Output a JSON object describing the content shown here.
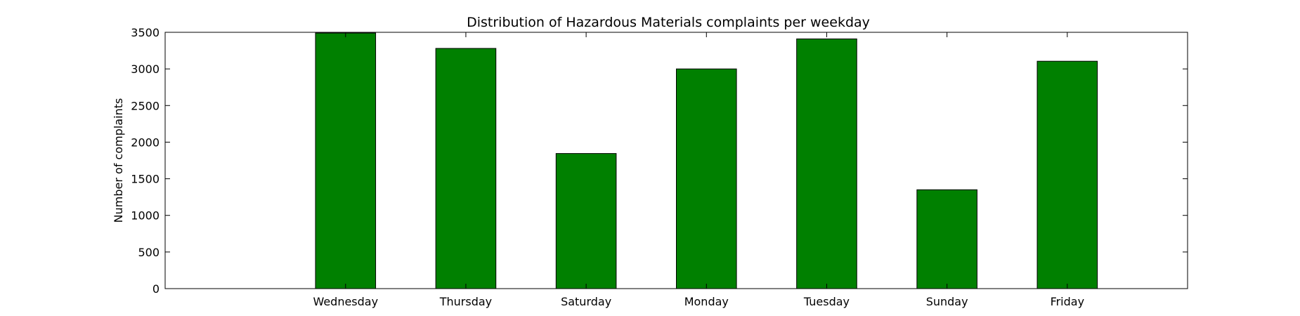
{
  "chart_data": {
    "type": "bar",
    "title": "Distribution of  Hazardous Materials complaints per weekday",
    "xlabel": "",
    "ylabel": "Number of complaints",
    "categories": [
      "Wednesday",
      "Thursday",
      "Saturday",
      "Monday",
      "Tuesday",
      "Sunday",
      "Friday"
    ],
    "values": [
      3490,
      3280,
      1845,
      3000,
      3410,
      1350,
      3105
    ],
    "ylim": [
      0,
      3500
    ],
    "yticks": [
      0,
      500,
      1000,
      1500,
      2000,
      2500,
      3000,
      3500
    ],
    "bar_color": "#008000",
    "edge_color": "#000000",
    "grid": false,
    "legend": "none"
  }
}
